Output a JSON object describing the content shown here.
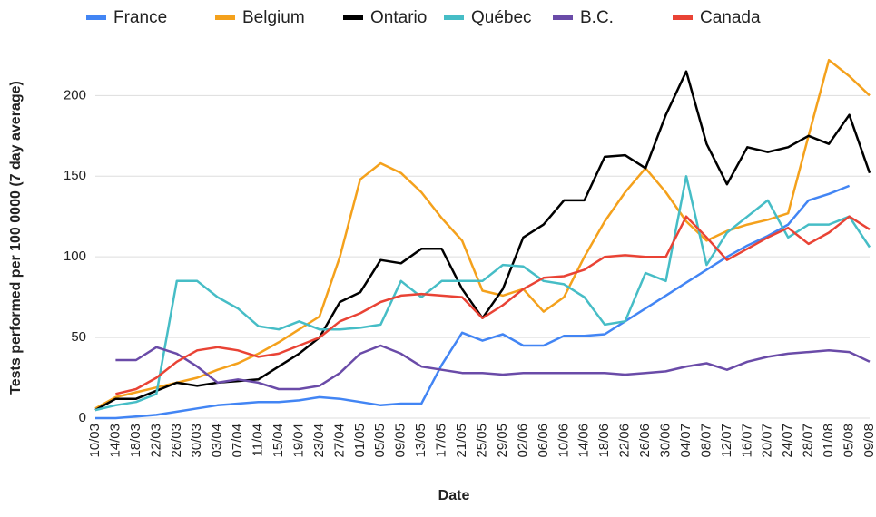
{
  "chart_data": {
    "type": "line",
    "x_label": "Date",
    "y_label": "Tests performed per 100 0000 (7 day average)",
    "categories": [
      "10/03",
      "14/03",
      "18/03",
      "22/03",
      "26/03",
      "30/03",
      "03/04",
      "07/04",
      "11/04",
      "15/04",
      "19/04",
      "23/04",
      "27/04",
      "01/05",
      "05/05",
      "09/05",
      "13/05",
      "17/05",
      "21/05",
      "25/05",
      "29/05",
      "02/06",
      "06/06",
      "10/06",
      "14/06",
      "18/06",
      "22/06",
      "26/06",
      "30/06",
      "04/07",
      "08/07",
      "12/07",
      "16/07",
      "20/07",
      "24/07",
      "28/07",
      "01/08",
      "05/08",
      "09/08"
    ],
    "series": [
      {
        "name": "France",
        "color": "#4285f4",
        "values": [
          0,
          0,
          1,
          2,
          4,
          6,
          8,
          9,
          10,
          10,
          11,
          13,
          12,
          10,
          8,
          9,
          9,
          33,
          53,
          48,
          52,
          45,
          45,
          51,
          51,
          52,
          60,
          68,
          76,
          84,
          92,
          100,
          107,
          113,
          120,
          135,
          139,
          144,
          null
        ]
      },
      {
        "name": "Belgium",
        "color": "#f4a11c",
        "values": [
          6,
          13,
          16,
          19,
          22,
          25,
          30,
          34,
          40,
          47,
          55,
          63,
          100,
          148,
          158,
          152,
          140,
          124,
          110,
          79,
          76,
          80,
          66,
          75,
          100,
          122,
          140,
          155,
          140,
          122,
          110,
          116,
          120,
          123,
          127,
          175,
          222,
          212,
          200
        ]
      },
      {
        "name": "Ontario",
        "color": "#000000",
        "values": [
          5,
          12,
          12,
          17,
          22,
          20,
          22,
          23,
          24,
          32,
          40,
          50,
          72,
          78,
          98,
          96,
          105,
          105,
          80,
          62,
          80,
          112,
          120,
          135,
          135,
          162,
          163,
          155,
          188,
          215,
          170,
          145,
          168,
          165,
          168,
          175,
          170,
          188,
          152
        ]
      },
      {
        "name": "Québec",
        "color": "#46bdc6",
        "values": [
          5,
          8,
          10,
          15,
          85,
          85,
          75,
          68,
          57,
          55,
          60,
          55,
          55,
          56,
          58,
          85,
          75,
          85,
          85,
          85,
          95,
          94,
          85,
          83,
          75,
          58,
          60,
          90,
          85,
          150,
          95,
          115,
          125,
          135,
          112,
          120,
          120,
          125,
          106
        ]
      },
      {
        "name": "B.C.",
        "color": "#6a4ba8",
        "values": [
          null,
          36,
          36,
          44,
          40,
          32,
          22,
          24,
          22,
          18,
          18,
          20,
          28,
          40,
          45,
          40,
          32,
          30,
          28,
          28,
          27,
          28,
          28,
          28,
          28,
          28,
          27,
          28,
          29,
          32,
          34,
          30,
          35,
          38,
          40,
          41,
          42,
          41,
          35
        ]
      },
      {
        "name": "Canada",
        "color": "#e94335",
        "values": [
          null,
          15,
          18,
          25,
          35,
          42,
          44,
          42,
          38,
          40,
          45,
          50,
          60,
          65,
          72,
          76,
          77,
          76,
          75,
          62,
          70,
          80,
          87,
          88,
          92,
          100,
          101,
          100,
          100,
          125,
          112,
          98,
          105,
          112,
          118,
          108,
          115,
          125,
          117
        ]
      }
    ],
    "ylim": [
      0,
      230
    ],
    "yticks": [
      0,
      50,
      100,
      150,
      200
    ],
    "grid": true
  }
}
